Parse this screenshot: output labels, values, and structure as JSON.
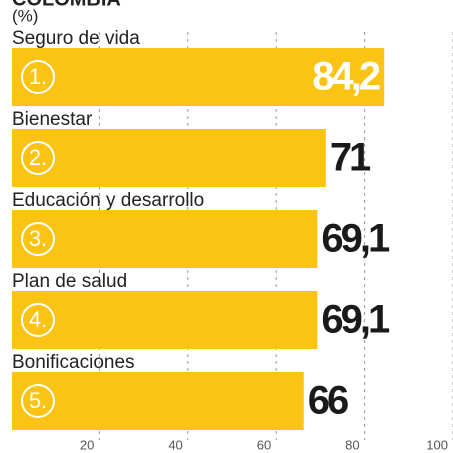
{
  "chart_data": {
    "type": "bar",
    "orientation": "horizontal",
    "title": "COLOMBIA",
    "subtitle": "(%)",
    "categories": [
      "Seguro de vida",
      "Bienestar",
      "Educación y desarrollo",
      "Plan de salud",
      "Bonificaciones"
    ],
    "ranks": [
      "1.",
      "2.",
      "3.",
      "4.",
      "5."
    ],
    "values": [
      84.2,
      71,
      69.1,
      69.1,
      66
    ],
    "value_labels": [
      "84,2",
      "71",
      "69,1",
      "69,1",
      "66"
    ],
    "color": "#fbc314",
    "xlim": [
      0,
      100
    ],
    "xticks": [
      20,
      40,
      60,
      80,
      100
    ],
    "grid": true
  }
}
